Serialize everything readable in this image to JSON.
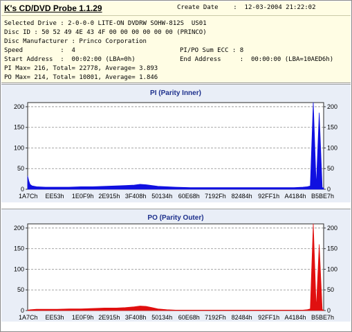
{
  "app": {
    "title": "K's CD/DVD Probe 1.1.29"
  },
  "create_date": {
    "label": "Create Date",
    "value": "12-03-2004 21:22:02"
  },
  "info": {
    "selected_drive": {
      "label": "Selected Drive",
      "value": "2-0-0-0 LITE-ON DVDRW SOHW-812S  US01"
    },
    "disc_id": {
      "label": "Disc ID",
      "value": "50 52 49 4E 43 4F 00 00 00 00 00 00 (PRINCO)"
    },
    "disc_manufacturer": {
      "label": "Disc Manufacturer",
      "value": "Princo Corporation"
    },
    "speed": {
      "label": "Speed",
      "value": "4"
    },
    "pipo_sum_ecc": {
      "label": "PI/PO Sum ECC",
      "value": "8"
    },
    "start_address": {
      "label": "Start Address",
      "value": "00:02:00 (LBA=0h)"
    },
    "end_address": {
      "label": "End Address",
      "value": "00:00:00 (LBA=10AED6h)"
    },
    "pi_summary": {
      "max_label": "PI Max=",
      "max": "216",
      "total_label": "Total=",
      "total": "22778",
      "avg_label": "Average=",
      "avg": "3.893"
    },
    "po_summary": {
      "max_label": "PO Max=",
      "max": "214",
      "total_label": "Total=",
      "total": "10801",
      "avg_label": "Average=",
      "avg": "1.846"
    }
  },
  "colors": {
    "pi": "#1010e0",
    "po": "#e01010",
    "panel_bg": "#e9eef7",
    "title_color": "#1c2f8c"
  },
  "chart_data": [
    {
      "type": "area",
      "title": "PI (Parity Inner)",
      "ylim": [
        0,
        210
      ],
      "yticks": [
        0,
        50,
        100,
        150,
        200
      ],
      "xticks": [
        "1A7Ch",
        "EE53h",
        "1E0F9h",
        "2E915h",
        "3F408h",
        "50134h",
        "60E68h",
        "7192Fh",
        "82484h",
        "92FF1h",
        "A4184h",
        "B5BE7h"
      ],
      "grid": "horizontal dashed",
      "series": [
        {
          "x": [
            0,
            0.004,
            0.008,
            0.015,
            0.03,
            0.06,
            0.1,
            0.14,
            0.18,
            0.22,
            0.26,
            0.3,
            0.33,
            0.36,
            0.38,
            0.4,
            0.42,
            0.44,
            0.47,
            0.5,
            0.55,
            0.6,
            0.65,
            0.7,
            0.75,
            0.8,
            0.85,
            0.9,
            0.93,
            0.945,
            0.955,
            0.965,
            0.975,
            0.985,
            0.995,
            1.0
          ],
          "y": [
            32,
            20,
            12,
            8,
            6,
            5,
            5,
            5,
            6,
            6,
            7,
            8,
            9,
            10,
            12,
            11,
            9,
            7,
            6,
            5,
            4,
            4,
            4,
            4,
            4,
            4,
            4,
            4,
            5,
            6,
            8,
            216,
            6,
            185,
            4,
            3
          ]
        }
      ]
    },
    {
      "type": "area",
      "title": "PO (Parity Outer)",
      "ylim": [
        0,
        210
      ],
      "yticks": [
        0,
        50,
        100,
        150,
        200
      ],
      "xticks": [
        "1A7Ch",
        "EE53h",
        "1E0F9h",
        "2E915h",
        "3F408h",
        "50134h",
        "60E68h",
        "7192Fh",
        "82484h",
        "92FF1h",
        "A4184h",
        "B5BE7h"
      ],
      "grid": "horizontal dashed",
      "series": [
        {
          "x": [
            0,
            0.01,
            0.03,
            0.06,
            0.1,
            0.14,
            0.18,
            0.22,
            0.26,
            0.3,
            0.33,
            0.36,
            0.38,
            0.4,
            0.42,
            0.44,
            0.47,
            0.5,
            0.55,
            0.6,
            0.65,
            0.7,
            0.75,
            0.8,
            0.85,
            0.9,
            0.93,
            0.945,
            0.955,
            0.965,
            0.975,
            0.985,
            0.995,
            1.0
          ],
          "y": [
            1,
            2,
            3,
            3,
            3,
            4,
            4,
            5,
            6,
            6,
            7,
            9,
            11,
            10,
            7,
            4,
            2,
            1,
            1,
            1,
            1,
            1,
            1,
            1,
            1,
            1,
            1,
            2,
            4,
            214,
            3,
            160,
            2,
            1
          ]
        }
      ]
    }
  ]
}
